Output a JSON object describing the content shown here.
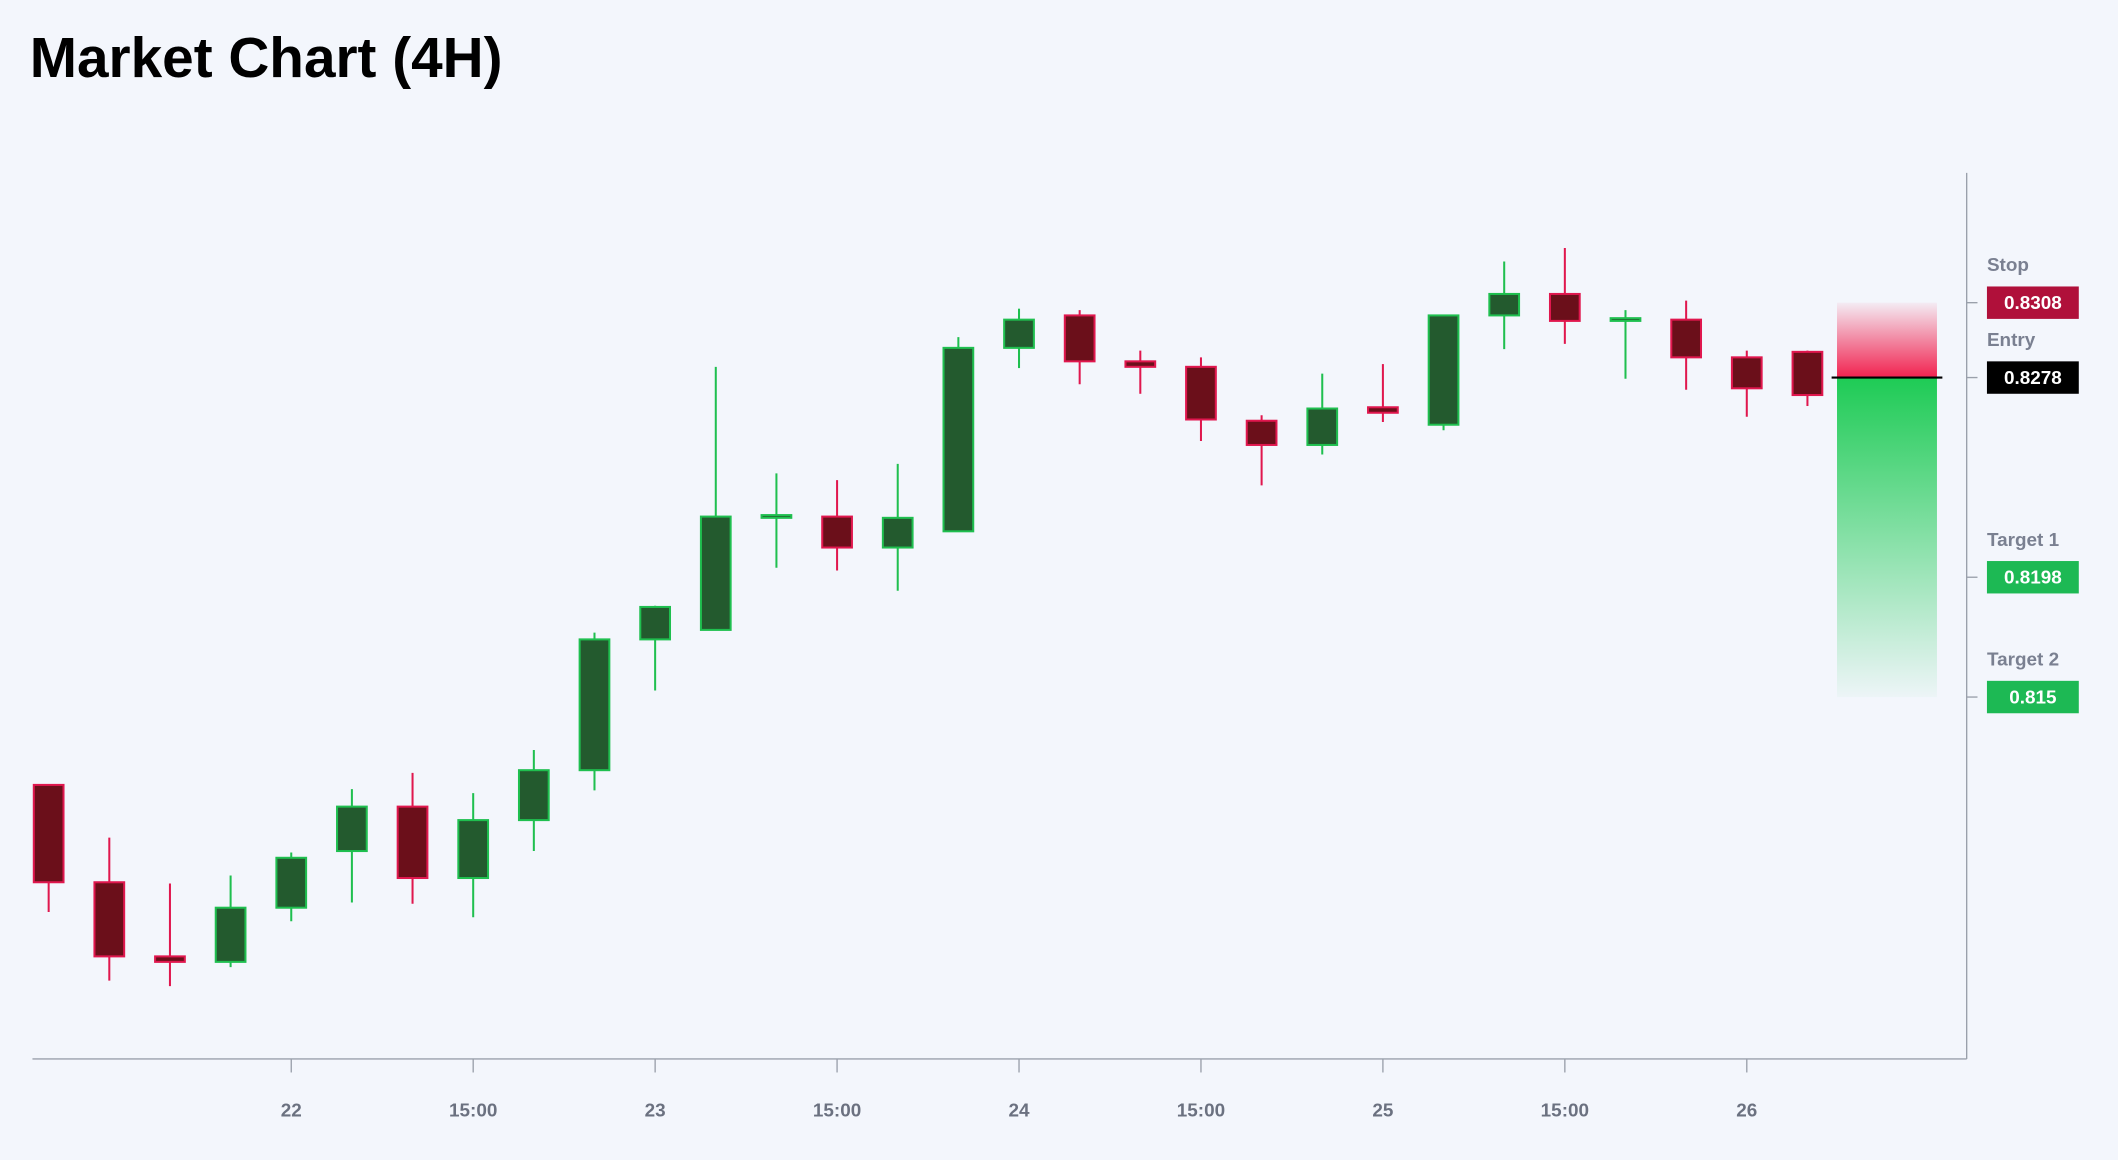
{
  "chart_data": {
    "type": "candlestick",
    "title": "Market Chart (4H)",
    "categories": [
      null,
      null,
      null,
      null,
      "22",
      null,
      null,
      "15:00",
      null,
      null,
      "23",
      null,
      null,
      "15:00",
      null,
      null,
      "24",
      null,
      null,
      "15:00",
      null,
      null,
      "25",
      null,
      null,
      "15:00",
      null,
      null,
      "26",
      null
    ],
    "open": [
      0.81148,
      0.80758,
      0.80461,
      0.80439,
      0.80656,
      0.80883,
      0.81061,
      0.80775,
      0.81007,
      0.81207,
      0.81731,
      0.81769,
      0.82218,
      0.82223,
      0.82099,
      0.82164,
      0.82899,
      0.83029,
      0.82845,
      0.82823,
      0.82607,
      0.8251,
      0.82661,
      0.82591,
      0.83029,
      0.83115,
      0.83007,
      0.83012,
      0.82861,
      0.82883
    ],
    "high": [
      0.81148,
      0.80937,
      0.80753,
      0.80785,
      0.80877,
      0.81131,
      0.81196,
      0.81115,
      0.81288,
      0.81758,
      0.81866,
      0.82823,
      0.82396,
      0.82369,
      0.82434,
      0.82942,
      0.83056,
      0.8305,
      0.82888,
      0.82861,
      0.82629,
      0.82796,
      0.82834,
      0.83029,
      0.83245,
      0.83299,
      0.8305,
      0.83088,
      0.82888,
      0.82888
    ],
    "low": [
      0.80639,
      0.80364,
      0.80342,
      0.80418,
      0.80602,
      0.80677,
      0.80672,
      0.80618,
      0.80883,
      0.81126,
      0.81526,
      0.81769,
      0.82018,
      0.82007,
      0.81926,
      0.82164,
      0.82818,
      0.82753,
      0.82715,
      0.82526,
      0.82348,
      0.82472,
      0.82602,
      0.82569,
      0.82894,
      0.82915,
      0.82775,
      0.82731,
      0.82623,
      0.82666
    ],
    "close": [
      0.80758,
      0.80461,
      0.80439,
      0.80656,
      0.80856,
      0.81061,
      0.80775,
      0.81007,
      0.81207,
      0.81731,
      0.81861,
      0.82223,
      0.82229,
      0.82099,
      0.82218,
      0.82899,
      0.83012,
      0.82845,
      0.82823,
      0.82612,
      0.8251,
      0.82656,
      0.82639,
      0.83029,
      0.83115,
      0.83007,
      0.83018,
      0.82861,
      0.82737,
      0.8271
    ],
    "up_color": "#1fbf4f",
    "down_color": "#e0174e",
    "ylim": [
      0.8005,
      0.836
    ],
    "levels": [
      {
        "name": "Stop",
        "value": 0.8308,
        "color": "#b0103a"
      },
      {
        "name": "Entry",
        "value": 0.8278,
        "color": "#000000"
      },
      {
        "name": "Target 1",
        "value": 0.8198,
        "color": "#1db954"
      },
      {
        "name": "Target 2",
        "value": 0.815,
        "color": "#1db954"
      }
    ]
  }
}
